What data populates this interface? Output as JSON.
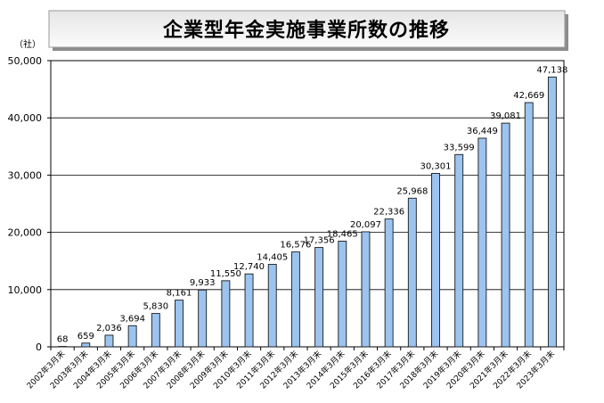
{
  "chart_data": {
    "type": "bar",
    "title": "企業型年金実施事業所数の推移",
    "xlabel": "",
    "ylabel": "（社）",
    "ylim": [
      0,
      50000
    ],
    "yticks": [
      0,
      10000,
      20000,
      30000,
      40000,
      50000
    ],
    "grid": true,
    "legend": "none",
    "categories": [
      "2002年3月末",
      "2003年3月末",
      "2004年3月末",
      "2005年3月末",
      "2006年3月末",
      "2007年3月末",
      "2008年3月末",
      "2009年3月末",
      "2010年3月末",
      "2011年3月末",
      "2012年3月末",
      "2013年3月末",
      "2014年3月末",
      "2015年3月末",
      "2016年3月末",
      "2017年3月末",
      "2018年3月末",
      "2019年3月末",
      "2020年3月末",
      "2021年3月末",
      "2022年3月末",
      "2023年3月末"
    ],
    "values": [
      68,
      659,
      2036,
      3694,
      5830,
      8161,
      9933,
      11550,
      12740,
      14405,
      16576,
      17356,
      18465,
      20097,
      22336,
      25968,
      30301,
      33599,
      36449,
      39081,
      42669,
      47138
    ],
    "colors": {
      "bar_fill": "#9cc4ef",
      "bar_stroke": "#1a1a1a",
      "grid": "#000000",
      "title_box_shadow": "#8c8c8c",
      "title_box_border": "#9a9a9a"
    }
  }
}
